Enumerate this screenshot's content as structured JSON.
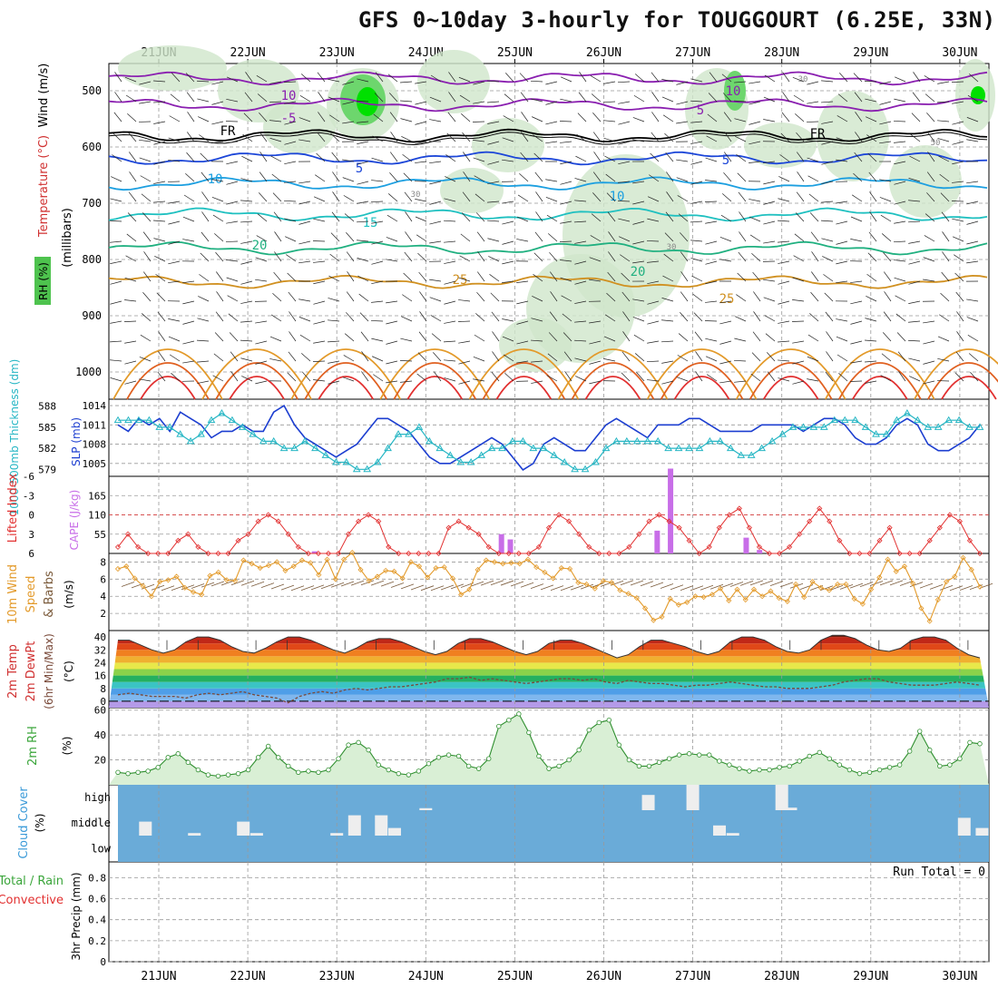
{
  "title": "GFS 0~10day 3-hourly for TOUGGOURT (6.25E, 33N)",
  "dates": [
    "21JUN",
    "22JUN",
    "23JUN",
    "24JUN",
    "25JUN",
    "26JUN",
    "27JUN",
    "28JUN",
    "29JUN",
    "30JUN"
  ],
  "colors": {
    "purple": "#8a1fb0",
    "blue": "#1c46d8",
    "teal": "#26b6c4",
    "green": "#3aa53a",
    "red": "#e23030",
    "orange": "#e39a2a",
    "rhFill": "#b9dcb5",
    "cloud": "#6aabd8"
  },
  "panels": {
    "upper": {
      "ylabel_rh": "RH (%)",
      "ylabel_temp": "Temperature (°C)",
      "ylabel_wind": "Wind (m/s)",
      "ylabel_mb": "(millibars)",
      "yticks": [
        "500",
        "600",
        "700",
        "800",
        "900",
        "1000"
      ],
      "contour_labels": [
        {
          "text": "10",
          "color": "#8a1fb0"
        },
        {
          "text": "-5",
          "color": "#8a1fb0"
        },
        {
          "text": "FR",
          "color": "#000000"
        },
        {
          "text": "5",
          "color": "#1c46d8"
        },
        {
          "text": "10",
          "color": "#1c9fe0"
        },
        {
          "text": "15",
          "color": "#1fc0c0"
        },
        {
          "text": "20",
          "color": "#20b080"
        },
        {
          "text": "25",
          "color": "#d09020"
        },
        {
          "text": "10",
          "color": "#8a1fb0"
        },
        {
          "text": "5",
          "color": "#8a1fb0"
        },
        {
          "text": "FR",
          "color": "#000000"
        },
        {
          "text": "5",
          "color": "#1c46d8"
        },
        {
          "text": "10",
          "color": "#1c9fe0"
        },
        {
          "text": "20",
          "color": "#20b080"
        },
        {
          "text": "25",
          "color": "#d09020"
        }
      ],
      "rh_contour_labels": [
        "30",
        "30",
        "50",
        "30"
      ]
    },
    "pressure": {
      "ylabel_thick": "1000-500mb Thickness (dm)",
      "ylabel_slp": "SLP (mb)",
      "left_ticks": [
        "588",
        "585",
        "582",
        "579"
      ],
      "right_ticks": [
        "1014",
        "1011",
        "1008",
        "1005"
      ]
    },
    "cape": {
      "ylabel_li": "Lifted Index",
      "ylabel_cape": "CAPE (J/kg)",
      "left_ticks": [
        "-6",
        "-3",
        "0",
        "3",
        "6"
      ],
      "right_ticks": [
        "165",
        "110",
        "55"
      ]
    },
    "wind10": {
      "ylabel_1": "10m Wind",
      "ylabel_2": "Speed",
      "ylabel_3": "& Barbs",
      "ylabel_unit": "(m/s)",
      "yticks": [
        "8",
        "6",
        "4",
        "2"
      ]
    },
    "temp2m": {
      "ylabel_1": "2m Temp",
      "ylabel_2": "2m DewPt",
      "ylabel_3": "(6hr Min/Max)",
      "ylabel_unit": "(°C)",
      "yticks": [
        "40",
        "32",
        "24",
        "16",
        "8",
        "0"
      ]
    },
    "rh2m": {
      "ylabel": "2m RH",
      "ylabel_unit": "(%)",
      "yticks": [
        "60",
        "40",
        "20"
      ]
    },
    "cloud": {
      "ylabel": "Cloud Cover",
      "ylabel_unit": "(%)",
      "levels": [
        "high",
        "middle",
        "low"
      ]
    },
    "precip": {
      "ylabel_total": "Total / Rain",
      "ylabel_conv": "Convective",
      "ylabel_axis": "3hr Precip (mm)",
      "yticks": [
        "0.8",
        "0.6",
        "0.4",
        "0.2",
        "0"
      ],
      "run_total": "Run Total = 0"
    }
  },
  "chart_data": [
    {
      "type": "line",
      "title": "1000-500mb Thickness (dm) / SLP (mb)",
      "series": [
        {
          "name": "SLP (mb)",
          "axis": "right",
          "values": [
            1011,
            1010,
            1012,
            1011,
            1012,
            1010,
            1013,
            1012,
            1011,
            1009,
            1010,
            1010,
            1011,
            1010,
            1010,
            1013,
            1014,
            1011,
            1009,
            1008,
            1007,
            1006,
            1007,
            1008,
            1010,
            1012,
            1012,
            1011,
            1010,
            1008,
            1006,
            1005,
            1005,
            1006,
            1007,
            1008,
            1009,
            1008,
            1006,
            1004,
            1005,
            1008,
            1009,
            1008,
            1007,
            1007,
            1009,
            1011,
            1012,
            1011,
            1010,
            1009,
            1011,
            1011,
            1011,
            1012,
            1012,
            1011,
            1010,
            1010,
            1010,
            1010,
            1011,
            1011,
            1011,
            1011,
            1010,
            1011,
            1012,
            1012,
            1011,
            1009,
            1008,
            1008,
            1009,
            1011,
            1012,
            1011,
            1008,
            1007,
            1007,
            1008,
            1009,
            1011
          ]
        },
        {
          "name": "1000-500mb Thickness (dm)",
          "axis": "left",
          "values": [
            586,
            586,
            586,
            586,
            585,
            585,
            584,
            583,
            584,
            586,
            587,
            586,
            585,
            584,
            583,
            583,
            582,
            582,
            583,
            582,
            581,
            580,
            580,
            579,
            579,
            580,
            582,
            584,
            584,
            585,
            583,
            582,
            581,
            580,
            580,
            581,
            582,
            582,
            583,
            583,
            582,
            582,
            581,
            580,
            579,
            579,
            580,
            582,
            583,
            583,
            583,
            583,
            583,
            582,
            582,
            582,
            582,
            583,
            583,
            582,
            581,
            581,
            582,
            583,
            584,
            585,
            585,
            585,
            585,
            586,
            586,
            586,
            585,
            584,
            584,
            586,
            587,
            586,
            585,
            585,
            586,
            586,
            585,
            585
          ]
        }
      ],
      "left_ylim": [
        578,
        589
      ],
      "right_ylim": [
        1003,
        1015
      ]
    },
    {
      "type": "bar",
      "title": "Lifted Index / CAPE (J/kg)",
      "series": [
        {
          "name": "Lifted Index",
          "axis": "left",
          "values": [
            5,
            3,
            5,
            6,
            6,
            6,
            4,
            3,
            5,
            6,
            6,
            6,
            4,
            3,
            1,
            0,
            1,
            3,
            5,
            6,
            6,
            6,
            6,
            3,
            1,
            0,
            1,
            5,
            6,
            6,
            6,
            6,
            6,
            2,
            1,
            2,
            3,
            5,
            6,
            6,
            6,
            6,
            5,
            2,
            0,
            1,
            3,
            5,
            6,
            6,
            6,
            5,
            3,
            1,
            0,
            1,
            2,
            4,
            6,
            5,
            2,
            0,
            -1,
            2,
            5,
            6,
            6,
            5,
            3,
            1,
            -1,
            1,
            4,
            6,
            6,
            6,
            4,
            2,
            6,
            6,
            6,
            4,
            2,
            0,
            1,
            4,
            6
          ]
        },
        {
          "name": "CAPE (J/kg)",
          "axis": "right",
          "values": [
            {
              "x": 22.75,
              "v": 6
            },
            {
              "x": 24.85,
              "v": 55
            },
            {
              "x": 24.95,
              "v": 40
            },
            {
              "x": 26.6,
              "v": 65
            },
            {
              "x": 26.75,
              "v": 245
            },
            {
              "x": 27.6,
              "v": 45
            },
            {
              "x": 27.75,
              "v": 10
            }
          ]
        }
      ],
      "left_ylim": [
        6,
        -6
      ],
      "right_ylim": [
        0,
        220
      ]
    },
    {
      "type": "line",
      "title": "10m Wind Speed (m/s)",
      "series": [
        {
          "name": "10m Wind Speed",
          "values": [
            7.2,
            7.5,
            6.1,
            5.2,
            4.0,
            5.7,
            5.9,
            6.3,
            5.0,
            4.5,
            4.2,
            6.4,
            6.8,
            5.9,
            5.8,
            8.2,
            7.8,
            7.3,
            7.6,
            8.0,
            7.0,
            7.5,
            8.2,
            7.9,
            6.5,
            8.3,
            6.0,
            8.3,
            9.1,
            7.1,
            5.8,
            6.3,
            7.0,
            6.9,
            6.1,
            8.0,
            7.5,
            6.2,
            7.3,
            7.4,
            6.1,
            4.2,
            4.8,
            7.1,
            8.2,
            8.0,
            7.8,
            7.9,
            7.8,
            8.3,
            7.4,
            6.8,
            6.1,
            7.3,
            7.2,
            5.6,
            5.4,
            4.9,
            5.8,
            5.6,
            4.7,
            4.3,
            3.8,
            2.6,
            1.2,
            1.6,
            3.7,
            3.0,
            3.3,
            4.0,
            3.9,
            4.2,
            4.9,
            3.5,
            4.8,
            3.6,
            4.8,
            4.0,
            4.6,
            3.8,
            3.4,
            5.4,
            3.9,
            5.7,
            5.0,
            4.7,
            5.4,
            5.4,
            3.7,
            3.1,
            4.8,
            6.2,
            8.3,
            6.9,
            7.5,
            5.5,
            2.6,
            1.1,
            3.6,
            5.7,
            6.3,
            8.5,
            7.1,
            5.1
          ]
        }
      ],
      "ylim": [
        0,
        9
      ]
    },
    {
      "type": "area",
      "title": "2m Temp / 2m DewPt (°C)",
      "series": [
        {
          "name": "2m Temp",
          "values": [
            38,
            38,
            35,
            32,
            30,
            32,
            37,
            40,
            40,
            38,
            34,
            31,
            30,
            33,
            37,
            40,
            40,
            38,
            35,
            32,
            30,
            33,
            37,
            39,
            39,
            37,
            34,
            31,
            29,
            31,
            36,
            39,
            39,
            37,
            34,
            31,
            29,
            31,
            36,
            38,
            38,
            36,
            33,
            30,
            27,
            29,
            34,
            38,
            38,
            36,
            34,
            31,
            29,
            31,
            37,
            40,
            40,
            38,
            34,
            31,
            30,
            32,
            38,
            41,
            41,
            39,
            35,
            32,
            31,
            33,
            38,
            40,
            40,
            38,
            33,
            29,
            27
          ]
        },
        {
          "name": "2m DewPt",
          "values": [
            4,
            5,
            4,
            3,
            3,
            3,
            2,
            4,
            5,
            4,
            5,
            6,
            4,
            3,
            2,
            -1,
            3,
            5,
            6,
            5,
            7,
            8,
            7,
            8,
            9,
            9,
            10,
            11,
            12,
            14,
            14,
            15,
            13,
            14,
            13,
            12,
            11,
            12,
            13,
            14,
            14,
            13,
            14,
            12,
            11,
            13,
            12,
            11,
            11,
            10,
            9,
            10,
            10,
            11,
            12,
            11,
            10,
            9,
            9,
            8,
            8,
            8,
            9,
            10,
            12,
            13,
            14,
            14,
            12,
            11,
            10,
            10,
            10,
            11,
            12,
            11,
            10
          ]
        }
      ],
      "ylim": [
        -4,
        44
      ]
    },
    {
      "type": "area",
      "title": "2m RH (%)",
      "series": [
        {
          "name": "2m RH",
          "values": [
            10,
            9,
            10,
            11,
            14,
            22,
            25,
            18,
            12,
            8,
            7,
            8,
            9,
            12,
            22,
            31,
            22,
            15,
            10,
            11,
            10,
            12,
            21,
            32,
            34,
            28,
            16,
            12,
            9,
            8,
            11,
            17,
            22,
            24,
            23,
            15,
            13,
            21,
            47,
            52,
            57,
            42,
            23,
            13,
            15,
            20,
            28,
            44,
            50,
            52,
            32,
            20,
            15,
            15,
            18,
            21,
            24,
            25,
            24,
            24,
            19,
            16,
            13,
            11,
            12,
            12,
            14,
            15,
            19,
            23,
            26,
            21,
            16,
            12,
            9,
            10,
            12,
            14,
            16,
            27,
            43,
            28,
            15,
            16,
            21,
            34,
            33
          ]
        }
      ],
      "ylim": [
        0,
        62
      ]
    },
    {
      "type": "bar",
      "title": "Cloud Cover (%)",
      "series": [
        {
          "name": "high",
          "values": [
            {
              "x": 24.0,
              "v": 8
            },
            {
              "x": 26.5,
              "v": 60
            },
            {
              "x": 27.0,
              "v": 100
            },
            {
              "x": 28.0,
              "v": 100
            },
            {
              "x": 28.1,
              "v": 10
            }
          ]
        },
        {
          "name": "middle",
          "values": [
            {
              "x": 20.85,
              "v": 55
            },
            {
              "x": 21.4,
              "v": 10
            },
            {
              "x": 21.95,
              "v": 55
            },
            {
              "x": 22.1,
              "v": 10
            },
            {
              "x": 23.0,
              "v": 10
            },
            {
              "x": 23.2,
              "v": 80
            },
            {
              "x": 23.5,
              "v": 80
            },
            {
              "x": 23.65,
              "v": 30
            },
            {
              "x": 27.3,
              "v": 40
            },
            {
              "x": 27.45,
              "v": 10
            },
            {
              "x": 30.05,
              "v": 70
            },
            {
              "x": 30.25,
              "v": 30
            }
          ]
        },
        {
          "name": "low",
          "values": []
        }
      ],
      "ylim": [
        0,
        100
      ]
    },
    {
      "type": "bar",
      "title": "3hr Precip (mm)",
      "series": [
        {
          "name": "Total / Rain",
          "values": []
        },
        {
          "name": "Convective",
          "values": []
        }
      ],
      "ylim": [
        0,
        0.95
      ]
    }
  ]
}
